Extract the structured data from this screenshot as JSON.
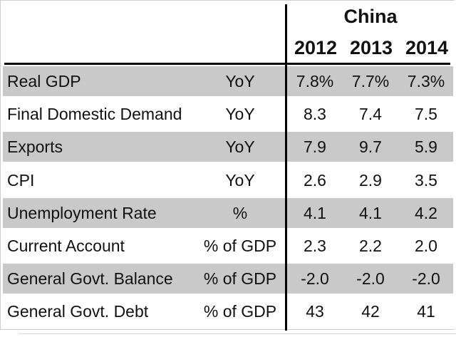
{
  "chart_data": {
    "type": "table",
    "country": "China",
    "years": [
      "2012",
      "2013",
      "2014"
    ],
    "rows": [
      {
        "label": "Real GDP",
        "unit": "YoY",
        "values": [
          "7.8%",
          "7.7%",
          "7.3%"
        ],
        "shaded": true
      },
      {
        "label": "Final Domestic Demand",
        "unit": "YoY",
        "values": [
          "8.3",
          "7.4",
          "7.5"
        ],
        "shaded": false
      },
      {
        "label": "Exports",
        "unit": "YoY",
        "values": [
          "7.9",
          "9.7",
          "5.9"
        ],
        "shaded": true
      },
      {
        "label": "CPI",
        "unit": "YoY",
        "values": [
          "2.6",
          "2.9",
          "3.5"
        ],
        "shaded": false
      },
      {
        "label": "Unemployment Rate",
        "unit": "%",
        "values": [
          "4.1",
          "4.1",
          "4.2"
        ],
        "shaded": true
      },
      {
        "label": "Current Account",
        "unit": "% of GDP",
        "values": [
          "2.3",
          "2.2",
          "2.0"
        ],
        "shaded": false
      },
      {
        "label": "General Govt. Balance",
        "unit": "% of GDP",
        "values": [
          "-2.0",
          "-2.0",
          "-2.0"
        ],
        "shaded": true
      },
      {
        "label": "General Govt. Debt",
        "unit": "% of GDP",
        "values": [
          "43",
          "42",
          "41"
        ],
        "shaded": false
      }
    ],
    "colors": {
      "shade": "#c9c9c9",
      "rule": "#000000",
      "text": "#111111"
    }
  }
}
